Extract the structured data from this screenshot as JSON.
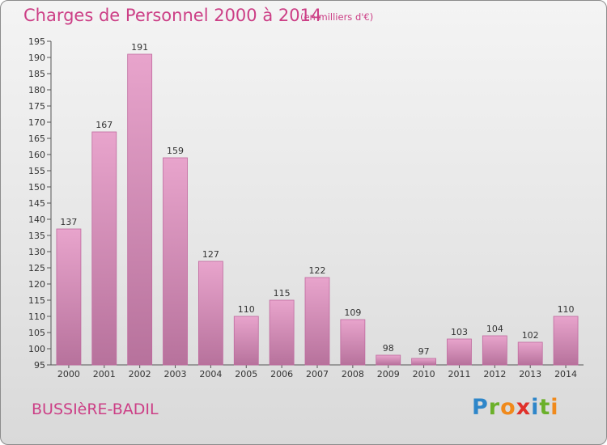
{
  "header": {
    "title": "Charges de Personnel 2000 à 2014",
    "subtitle": "(en milliers d'€)"
  },
  "footer": {
    "commune": "BUSSIèRE-BADIL",
    "logo": {
      "letters": [
        "P",
        "r",
        "o",
        "x",
        "i",
        "t",
        "i"
      ],
      "colors": [
        "#2e86c9",
        "#6bb02a",
        "#f08a1c",
        "#e0302a",
        "#2e86c9",
        "#6bb02a",
        "#f08a1c"
      ]
    }
  },
  "colors": {
    "accent": "#cc3f86",
    "bar_top": "#e8a4cc",
    "bar_bottom": "#b7729c",
    "bar_edge": "#c06a9f"
  },
  "chart_data": {
    "type": "bar",
    "title": "Charges de Personnel 2000 à 2014",
    "subtitle": "(en milliers d'€)",
    "categories": [
      "2000",
      "2001",
      "2002",
      "2003",
      "2004",
      "2005",
      "2006",
      "2007",
      "2008",
      "2009",
      "2010",
      "2011",
      "2012",
      "2013",
      "2014"
    ],
    "values": [
      137,
      167,
      191,
      159,
      127,
      110,
      115,
      122,
      109,
      98,
      97,
      103,
      104,
      102,
      110
    ],
    "ylim": [
      95,
      195
    ],
    "yticks": [
      95,
      100,
      105,
      110,
      115,
      120,
      125,
      130,
      135,
      140,
      145,
      150,
      155,
      160,
      165,
      170,
      175,
      180,
      185,
      190,
      195
    ],
    "grid": false,
    "legend": "none"
  }
}
